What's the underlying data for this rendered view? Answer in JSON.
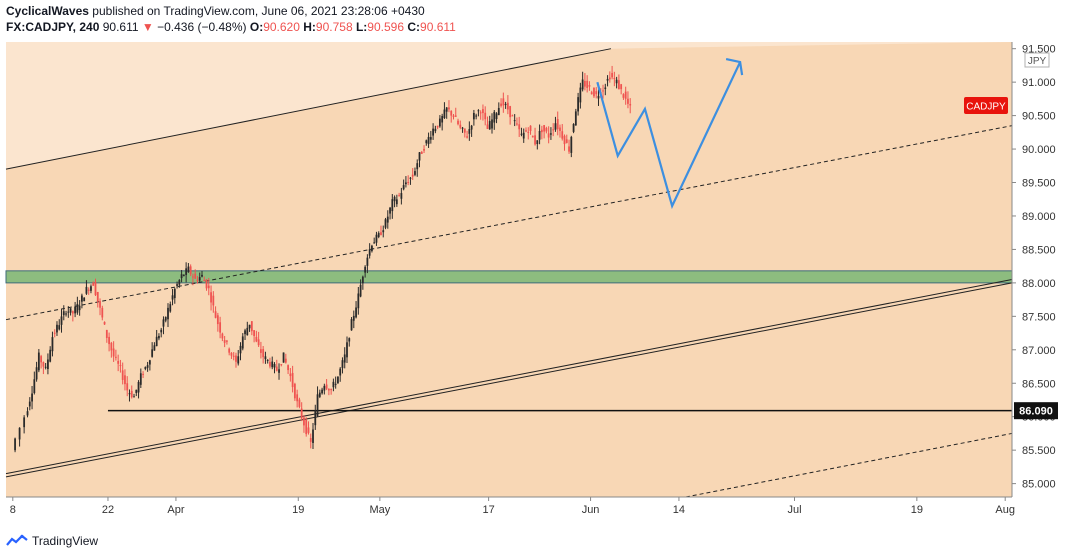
{
  "header": {
    "author": "CyclicalWaves",
    "published_text": "published on TradingView.com, June 06, 2021 23:28:06 +0430",
    "symbol": "FX:CADJPY, 240",
    "last": "90.611",
    "arrow": "▼",
    "change": "−0.436 (−0.48%)",
    "o_label": "O:",
    "o_value": "90.620",
    "h_label": "H:",
    "h_value": "90.758",
    "l_label": "L:",
    "l_value": "90.596",
    "c_label": "C:",
    "c_value": "90.611"
  },
  "footer": {
    "brand": "TradingView"
  },
  "colors": {
    "channel_fill": "#f8d7b5",
    "channel_fill_light": "#fbe5cf",
    "green_zone": "#8dbc7f",
    "candle_up": "#2a2a2a",
    "candle_down": "#ef5350",
    "projection": "#3d8fe0",
    "badge": "#e8130c"
  },
  "chart_data": {
    "type": "line",
    "title": "",
    "currency_label": "JPY",
    "symbol_badge": "CADJPY",
    "price_badge": "86.090",
    "ylim": [
      84.8,
      91.6
    ],
    "y_ticks": [
      "91.500",
      "91.000",
      "90.500",
      "90.000",
      "89.500",
      "89.000",
      "88.500",
      "88.000",
      "87.500",
      "87.000",
      "86.500",
      "86.000",
      "85.500",
      "85.000"
    ],
    "x_ticks": [
      {
        "label": "8",
        "day": 0
      },
      {
        "label": "22",
        "day": 14
      },
      {
        "label": "Apr",
        "day": 24
      },
      {
        "label": "19",
        "day": 42
      },
      {
        "label": "May",
        "day": 54
      },
      {
        "label": "17",
        "day": 70
      },
      {
        "label": "Jun",
        "day": 85
      },
      {
        "label": "14",
        "day": 98
      },
      {
        "label": "Jul",
        "day": 115
      },
      {
        "label": "19",
        "day": 133
      },
      {
        "label": "Aug",
        "day": 146
      }
    ],
    "xlim_days": [
      -1,
      147
    ],
    "support_zone": [
      88.0,
      88.18
    ],
    "horizontal_level": 86.09,
    "price_path": [
      [
        0,
        85.5
      ],
      [
        2,
        86.0
      ],
      [
        3,
        86.4
      ],
      [
        4,
        86.9
      ],
      [
        5,
        86.7
      ],
      [
        6,
        87.2
      ],
      [
        7,
        87.4
      ],
      [
        8,
        87.6
      ],
      [
        9,
        87.55
      ],
      [
        10,
        87.7
      ],
      [
        11,
        87.9
      ],
      [
        12,
        88.0
      ],
      [
        13,
        87.6
      ],
      [
        14,
        87.2
      ],
      [
        15,
        86.9
      ],
      [
        16,
        86.7
      ],
      [
        17,
        86.4
      ],
      [
        18,
        86.3
      ],
      [
        19,
        86.6
      ],
      [
        20,
        86.8
      ],
      [
        21,
        87.1
      ],
      [
        22,
        87.3
      ],
      [
        23,
        87.6
      ],
      [
        24,
        87.9
      ],
      [
        25,
        88.1
      ],
      [
        26,
        88.2
      ],
      [
        27,
        88.05
      ],
      [
        28,
        88.1
      ],
      [
        29,
        87.9
      ],
      [
        30,
        87.5
      ],
      [
        31,
        87.2
      ],
      [
        32,
        87.0
      ],
      [
        33,
        86.8
      ],
      [
        34,
        87.2
      ],
      [
        35,
        87.4
      ],
      [
        36,
        87.1
      ],
      [
        37,
        86.9
      ],
      [
        38,
        86.8
      ],
      [
        39,
        86.7
      ],
      [
        40,
        86.9
      ],
      [
        41,
        86.6
      ],
      [
        42,
        86.2
      ],
      [
        43,
        85.9
      ],
      [
        44,
        85.6
      ],
      [
        45,
        86.3
      ],
      [
        46,
        86.5
      ],
      [
        47,
        86.4
      ],
      [
        48,
        86.6
      ],
      [
        49,
        86.9
      ],
      [
        50,
        87.4
      ],
      [
        51,
        87.8
      ],
      [
        52,
        88.3
      ],
      [
        53,
        88.6
      ],
      [
        54,
        88.7
      ],
      [
        55,
        88.9
      ],
      [
        56,
        89.2
      ],
      [
        57,
        89.3
      ],
      [
        58,
        89.5
      ],
      [
        59,
        89.6
      ],
      [
        60,
        89.9
      ],
      [
        61,
        90.1
      ],
      [
        62,
        90.3
      ],
      [
        63,
        90.4
      ],
      [
        64,
        90.6
      ],
      [
        65,
        90.5
      ],
      [
        66,
        90.3
      ],
      [
        67,
        90.2
      ],
      [
        68,
        90.5
      ],
      [
        69,
        90.6
      ],
      [
        70,
        90.3
      ],
      [
        71,
        90.5
      ],
      [
        72,
        90.7
      ],
      [
        73,
        90.6
      ],
      [
        74,
        90.4
      ],
      [
        75,
        90.2
      ],
      [
        76,
        90.3
      ],
      [
        77,
        90.1
      ],
      [
        78,
        90.3
      ],
      [
        79,
        90.2
      ],
      [
        80,
        90.4
      ],
      [
        81,
        90.2
      ],
      [
        82,
        90.0
      ],
      [
        83,
        90.6
      ],
      [
        84,
        91.0
      ],
      [
        85,
        90.9
      ],
      [
        86,
        90.8
      ],
      [
        87,
        90.9
      ],
      [
        88,
        91.1
      ],
      [
        89,
        91.0
      ],
      [
        90,
        90.8
      ],
      [
        91,
        90.6
      ]
    ],
    "projection_path": [
      [
        86,
        91.0
      ],
      [
        89,
        89.9
      ],
      [
        93,
        90.6
      ],
      [
        97,
        89.15
      ],
      [
        107,
        91.3
      ]
    ],
    "channel_upper": [
      [
        -1,
        89.7
      ],
      [
        88,
        91.5
      ]
    ],
    "channel_mid": [
      [
        -1,
        87.45
      ],
      [
        147,
        90.35
      ]
    ],
    "channel_lower_a": [
      [
        -1,
        85.15
      ],
      [
        147,
        88.05
      ]
    ],
    "channel_lower_b": [
      [
        -1,
        85.1
      ],
      [
        147,
        88.0
      ]
    ],
    "channel_bottom": [
      [
        98,
        84.78
      ],
      [
        147,
        85.75
      ]
    ],
    "swing_low_line": [
      [
        14,
        86.09
      ],
      [
        147,
        86.09
      ]
    ]
  }
}
